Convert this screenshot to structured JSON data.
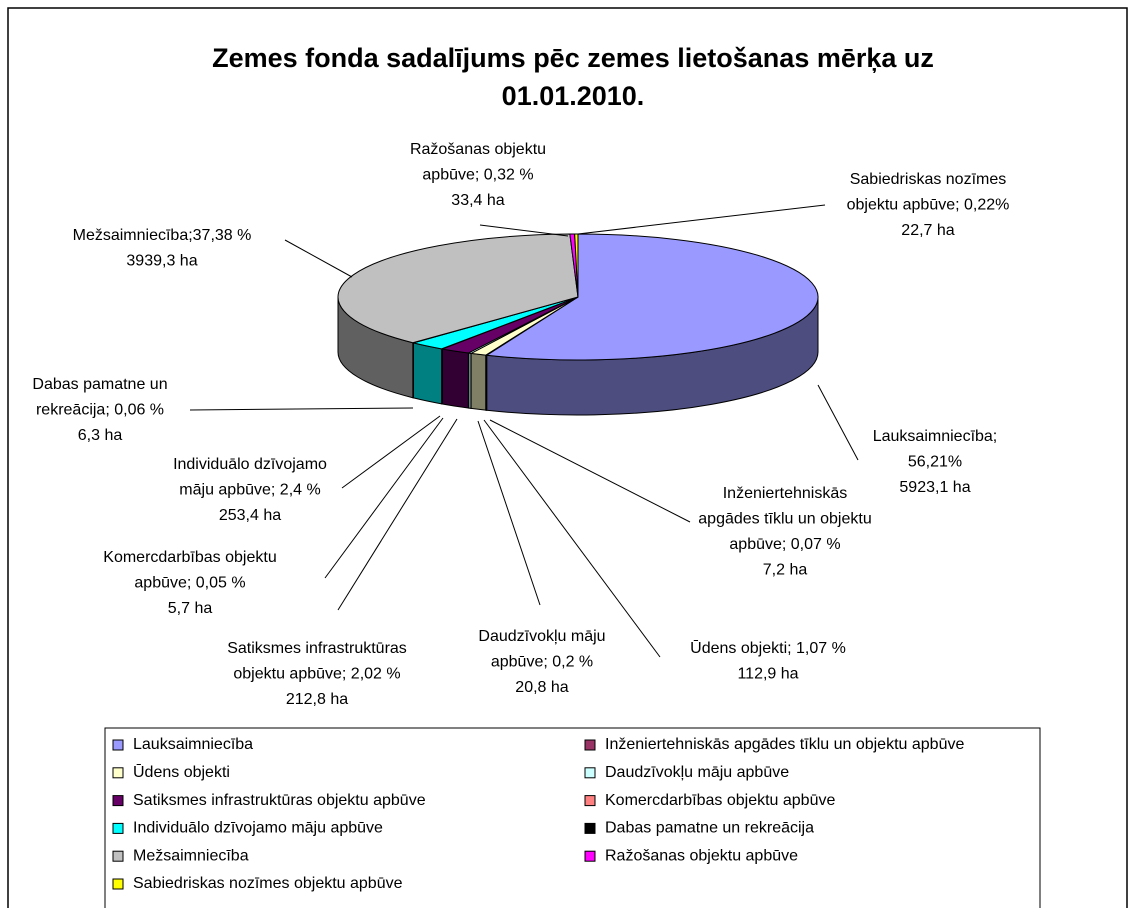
{
  "chart_data": {
    "type": "pie",
    "title": [
      "Zemes fonda sadalījums pēc zemes lietošanas mērķa uz",
      "01.01.2010."
    ],
    "categories": [
      "Lauksaimniecība",
      "Inženiertehniskās apgādes tīklu un objektu apbūve",
      "Ūdens objekti",
      "Daudzīvokļu māju apbūve",
      "Satiksmes infrastruktūras objektu apbūve",
      "Komercdarbības objektu apbūve",
      "Individuālo dzīvojamo māju apbūve",
      "Dabas pamatne un rekreācija",
      "Mežsaimniecība",
      "Ražošanas objektu apbūve",
      "Sabiedriskas nozīmes objektu apbūve"
    ],
    "values": [
      56.21,
      0.07,
      1.07,
      0.2,
      2.02,
      0.05,
      2.4,
      0.06,
      37.38,
      0.32,
      0.22
    ],
    "value_labels": [
      [
        "Lauksaimniecība;",
        "56,21%",
        "5923,1 ha"
      ],
      [
        "Inženiertehniskās",
        "apgādes tīklu un objektu",
        "apbūve; 0,07 %",
        "7,2 ha"
      ],
      [
        "Ūdens objekti; 1,07 %",
        "112,9 ha"
      ],
      [
        "Daudzīvokļu māju",
        "apbūve; 0,2 %",
        "20,8 ha"
      ],
      [
        "Satiksmes infrastruktūras",
        "objektu apbūve; 2,02 %",
        "212,8 ha"
      ],
      [
        "Komercdarbības objektu",
        "apbūve; 0,05 %",
        "5,7 ha"
      ],
      [
        "Individuālo dzīvojamo",
        "māju apbūve; 2,4 %",
        "253,4 ha"
      ],
      [
        "Dabas pamatne un",
        "rekreācija; 0,06 %",
        "6,3 ha"
      ],
      [
        "Mežsaimniecība;37,38 %",
        "3939,3 ha"
      ],
      [
        "Ražošanas objektu",
        "apbūve; 0,32 %",
        "33,4 ha"
      ],
      [
        "Sabiedriskas nozīmes",
        "objektu apbūve; 0,22%",
        "22,7 ha"
      ]
    ],
    "colors": [
      "#9999ff",
      "#993366",
      "#ffffcc",
      "#ccffff",
      "#660066",
      "#ff8080",
      "#00ffff",
      "#000000",
      "#c0c0c0",
      "#ff00ff",
      "#ffff00"
    ]
  }
}
